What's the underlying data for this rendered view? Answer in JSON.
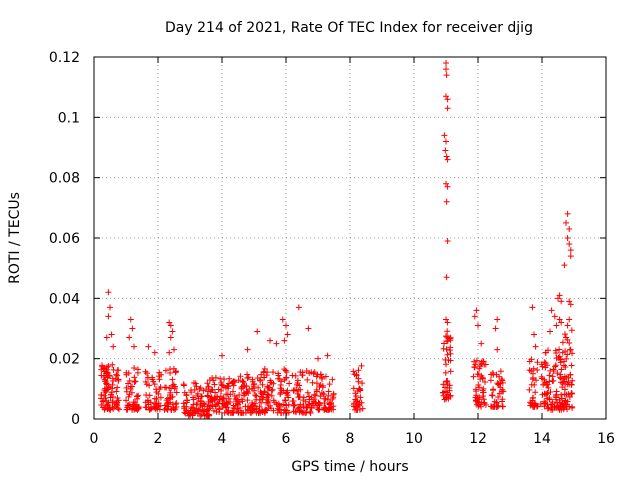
{
  "chart_data": {
    "type": "scatter",
    "title": "Day 214 of 2021, Rate Of TEC Index for receiver djig",
    "xlabel": "GPS time / hours",
    "ylabel": "ROTI / TECUs",
    "xlim": [
      0,
      16
    ],
    "ylim": [
      0,
      0.12
    ],
    "x_ticks": [
      "0",
      "2",
      "4",
      "6",
      "8",
      "10",
      "12",
      "14",
      "16"
    ],
    "y_ticks": [
      "0",
      "0.02",
      "0.04",
      "0.06",
      "0.08",
      "0.1",
      "0.12"
    ],
    "grid": true,
    "marker": "+",
    "color": "#ff0000",
    "clusters": [
      {
        "x_range": [
          0.2,
          0.8
        ],
        "y_range": [
          0.003,
          0.018
        ],
        "count": 90
      },
      {
        "x_range": [
          1.0,
          1.4
        ],
        "y_range": [
          0.003,
          0.017
        ],
        "count": 50
      },
      {
        "x_range": [
          1.6,
          2.1
        ],
        "y_range": [
          0.003,
          0.016
        ],
        "count": 50
      },
      {
        "x_range": [
          2.2,
          2.6
        ],
        "y_range": [
          0.003,
          0.018
        ],
        "count": 45
      },
      {
        "x_range": [
          2.8,
          3.6
        ],
        "y_range": [
          0.001,
          0.012
        ],
        "count": 90
      },
      {
        "x_range": [
          3.6,
          4.4
        ],
        "y_range": [
          0.002,
          0.014
        ],
        "count": 90
      },
      {
        "x_range": [
          4.4,
          5.2
        ],
        "y_range": [
          0.002,
          0.015
        ],
        "count": 90
      },
      {
        "x_range": [
          5.2,
          6.1
        ],
        "y_range": [
          0.002,
          0.017
        ],
        "count": 100
      },
      {
        "x_range": [
          6.2,
          6.9
        ],
        "y_range": [
          0.002,
          0.016
        ],
        "count": 70
      },
      {
        "x_range": [
          6.9,
          7.5
        ],
        "y_range": [
          0.003,
          0.015
        ],
        "count": 60
      },
      {
        "x_range": [
          8.1,
          8.4
        ],
        "y_range": [
          0.003,
          0.019
        ],
        "count": 35
      },
      {
        "x_range": [
          10.9,
          11.15
        ],
        "y_range": [
          0.006,
          0.03
        ],
        "count": 45
      },
      {
        "x_range": [
          11.85,
          12.25
        ],
        "y_range": [
          0.004,
          0.02
        ],
        "count": 50
      },
      {
        "x_range": [
          12.4,
          12.8
        ],
        "y_range": [
          0.004,
          0.016
        ],
        "count": 40
      },
      {
        "x_range": [
          13.6,
          14.1
        ],
        "y_range": [
          0.004,
          0.02
        ],
        "count": 45
      },
      {
        "x_range": [
          14.1,
          14.6
        ],
        "y_range": [
          0.003,
          0.025
        ],
        "count": 70
      },
      {
        "x_range": [
          14.6,
          14.95
        ],
        "y_range": [
          0.003,
          0.03
        ],
        "count": 60
      }
    ],
    "outliers": [
      {
        "x": 0.45,
        "y": 0.042
      },
      {
        "x": 0.5,
        "y": 0.037
      },
      {
        "x": 0.45,
        "y": 0.034
      },
      {
        "x": 0.4,
        "y": 0.027
      },
      {
        "x": 0.55,
        "y": 0.028
      },
      {
        "x": 0.6,
        "y": 0.024
      },
      {
        "x": 1.15,
        "y": 0.033
      },
      {
        "x": 1.2,
        "y": 0.03
      },
      {
        "x": 1.1,
        "y": 0.027
      },
      {
        "x": 1.25,
        "y": 0.024
      },
      {
        "x": 1.7,
        "y": 0.024
      },
      {
        "x": 1.9,
        "y": 0.022
      },
      {
        "x": 2.35,
        "y": 0.032
      },
      {
        "x": 2.4,
        "y": 0.031
      },
      {
        "x": 2.45,
        "y": 0.029
      },
      {
        "x": 2.4,
        "y": 0.027
      },
      {
        "x": 2.5,
        "y": 0.023
      },
      {
        "x": 2.35,
        "y": 0.022
      },
      {
        "x": 4.0,
        "y": 0.021
      },
      {
        "x": 4.8,
        "y": 0.023
      },
      {
        "x": 5.1,
        "y": 0.029
      },
      {
        "x": 5.5,
        "y": 0.026
      },
      {
        "x": 5.7,
        "y": 0.025
      },
      {
        "x": 5.9,
        "y": 0.033
      },
      {
        "x": 6.0,
        "y": 0.031
      },
      {
        "x": 6.05,
        "y": 0.028
      },
      {
        "x": 5.95,
        "y": 0.026
      },
      {
        "x": 6.4,
        "y": 0.037
      },
      {
        "x": 6.7,
        "y": 0.03
      },
      {
        "x": 7.3,
        "y": 0.021
      },
      {
        "x": 7.0,
        "y": 0.02
      },
      {
        "x": 11.0,
        "y": 0.118
      },
      {
        "x": 11.0,
        "y": 0.116
      },
      {
        "x": 11.02,
        "y": 0.114
      },
      {
        "x": 11.0,
        "y": 0.107
      },
      {
        "x": 11.05,
        "y": 0.106
      },
      {
        "x": 11.05,
        "y": 0.103
      },
      {
        "x": 10.95,
        "y": 0.094
      },
      {
        "x": 11.0,
        "y": 0.092
      },
      {
        "x": 10.98,
        "y": 0.089
      },
      {
        "x": 11.02,
        "y": 0.087
      },
      {
        "x": 11.05,
        "y": 0.086
      },
      {
        "x": 11.0,
        "y": 0.078
      },
      {
        "x": 11.05,
        "y": 0.077
      },
      {
        "x": 11.02,
        "y": 0.072
      },
      {
        "x": 11.05,
        "y": 0.059
      },
      {
        "x": 11.02,
        "y": 0.047
      },
      {
        "x": 11.0,
        "y": 0.033
      },
      {
        "x": 11.05,
        "y": 0.032
      },
      {
        "x": 11.95,
        "y": 0.036
      },
      {
        "x": 11.9,
        "y": 0.034
      },
      {
        "x": 12.0,
        "y": 0.031
      },
      {
        "x": 12.1,
        "y": 0.025
      },
      {
        "x": 12.6,
        "y": 0.033
      },
      {
        "x": 12.55,
        "y": 0.03
      },
      {
        "x": 12.6,
        "y": 0.023
      },
      {
        "x": 13.7,
        "y": 0.037
      },
      {
        "x": 13.75,
        "y": 0.028
      },
      {
        "x": 13.8,
        "y": 0.024
      },
      {
        "x": 14.3,
        "y": 0.036
      },
      {
        "x": 14.25,
        "y": 0.029
      },
      {
        "x": 14.4,
        "y": 0.034
      },
      {
        "x": 14.5,
        "y": 0.04
      },
      {
        "x": 14.55,
        "y": 0.041
      },
      {
        "x": 14.6,
        "y": 0.039
      },
      {
        "x": 14.55,
        "y": 0.033
      },
      {
        "x": 14.6,
        "y": 0.032
      },
      {
        "x": 14.45,
        "y": 0.031
      },
      {
        "x": 14.8,
        "y": 0.068
      },
      {
        "x": 14.75,
        "y": 0.065
      },
      {
        "x": 14.85,
        "y": 0.063
      },
      {
        "x": 14.8,
        "y": 0.06
      },
      {
        "x": 14.85,
        "y": 0.058
      },
      {
        "x": 14.9,
        "y": 0.056
      },
      {
        "x": 14.9,
        "y": 0.054
      },
      {
        "x": 14.7,
        "y": 0.051
      },
      {
        "x": 14.85,
        "y": 0.039
      },
      {
        "x": 14.9,
        "y": 0.038
      },
      {
        "x": 14.85,
        "y": 0.033
      },
      {
        "x": 14.8,
        "y": 0.031
      },
      {
        "x": 14.75,
        "y": 0.027
      },
      {
        "x": 14.65,
        "y": 0.022
      }
    ]
  }
}
